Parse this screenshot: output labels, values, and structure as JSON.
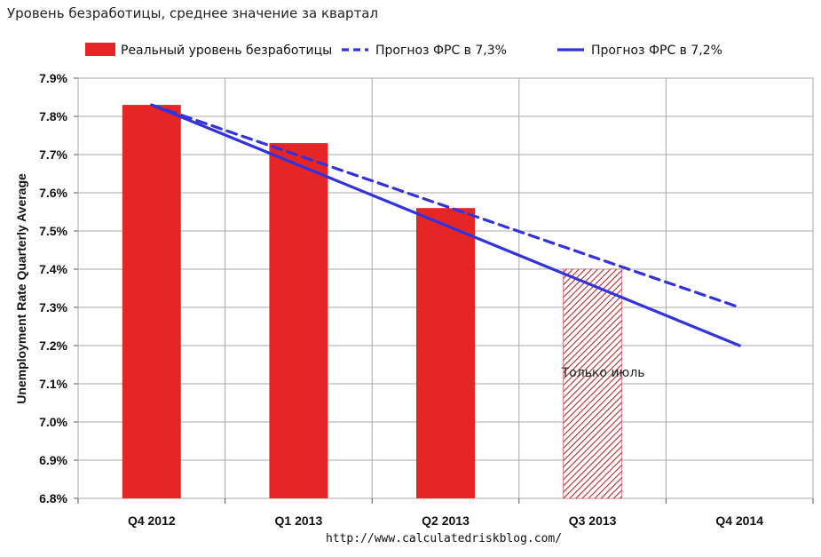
{
  "title": "Уровень безработицы, среднее значение за квартал",
  "source": "http://www.calculatedriskblog.com/",
  "chart_data": {
    "type": "bar",
    "categories": [
      "Q4 2012",
      "Q1 2013",
      "Q2 2013",
      "Q3 2013",
      "Q4 2014"
    ],
    "ylabel": "Unemployment Rate Quarterly Average",
    "ylim": [
      6.8,
      7.9
    ],
    "yticks": [
      "6.8%",
      "6.9%",
      "7.0%",
      "7.1%",
      "7.2%",
      "7.3%",
      "7.4%",
      "7.5%",
      "7.6%",
      "7.7%",
      "7.8%",
      "7.9%"
    ],
    "grid": true,
    "legend_position": "top",
    "series": [
      {
        "name": "Реальный уровень безработицы",
        "kind": "bar",
        "values": [
          7.83,
          7.73,
          7.56,
          7.4,
          null
        ],
        "hatched": [
          false,
          false,
          false,
          true,
          false
        ],
        "color": "#e62525"
      },
      {
        "name": "Прогноз ФРС в 7,3%",
        "kind": "line",
        "style": "dashed",
        "x": [
          "Q4 2012",
          "Q4 2014"
        ],
        "values": [
          7.83,
          7.3
        ],
        "color": "#3333dd"
      },
      {
        "name": "Прогноз ФРС в 7,2%",
        "kind": "line",
        "style": "solid",
        "x": [
          "Q4 2012",
          "Q4 2014"
        ],
        "values": [
          7.83,
          7.2
        ],
        "color": "#3333dd"
      }
    ],
    "annotations": [
      {
        "category": "Q3 2013",
        "text": "Только июль",
        "y": 7.13
      }
    ]
  }
}
